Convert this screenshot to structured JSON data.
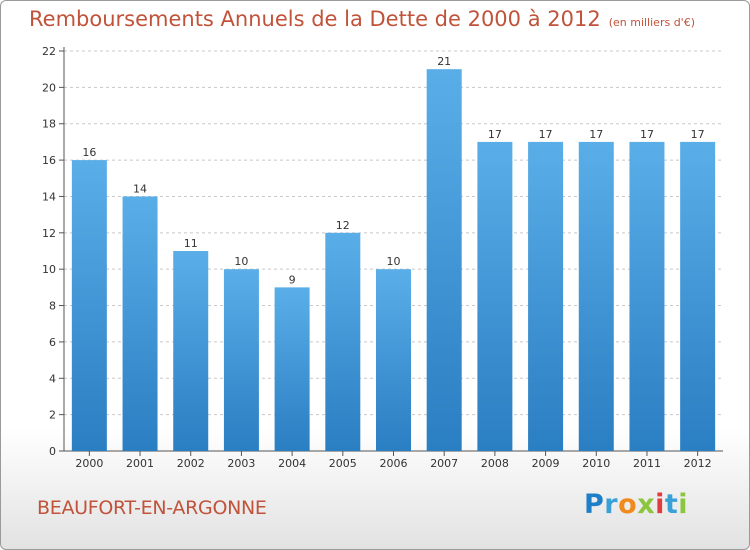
{
  "header": {
    "title": "Remboursements Annuels de la Dette de 2000 à 2012",
    "unit_note": "(en milliers d'€)"
  },
  "footer": {
    "commune": "BEAUFORT-EN-ARGONNE",
    "brand_letters": [
      {
        "ch": "P",
        "color": "#1f7ec8"
      },
      {
        "ch": "r",
        "color": "#3aa0d8"
      },
      {
        "ch": "o",
        "color": "#f08a1c"
      },
      {
        "ch": "x",
        "color": "#8cc63e"
      },
      {
        "ch": "i",
        "color": "#e23b3b"
      },
      {
        "ch": "t",
        "color": "#3aa0d8"
      },
      {
        "ch": "i",
        "color": "#8cc63e"
      }
    ]
  },
  "colors": {
    "bar_top": "#5aaee8",
    "bar_bottom": "#2a7ec2",
    "title": "#c0533a",
    "grid": "#c8c8c8"
  },
  "chart_data": {
    "type": "bar",
    "title": "Remboursements Annuels de la Dette de 2000 à 2012",
    "subtitle": "(en milliers d'€)",
    "xlabel": "",
    "ylabel": "",
    "categories": [
      "2000",
      "2001",
      "2002",
      "2003",
      "2004",
      "2005",
      "2006",
      "2007",
      "2008",
      "2009",
      "2010",
      "2011",
      "2012"
    ],
    "values": [
      16,
      14,
      11,
      10,
      9,
      12,
      10,
      21,
      17,
      17,
      17,
      17,
      17
    ],
    "ylim": [
      0,
      22
    ],
    "yticks": [
      0,
      2,
      4,
      6,
      8,
      10,
      12,
      14,
      16,
      18,
      20,
      22
    ],
    "grid": true,
    "data_labels": true
  }
}
